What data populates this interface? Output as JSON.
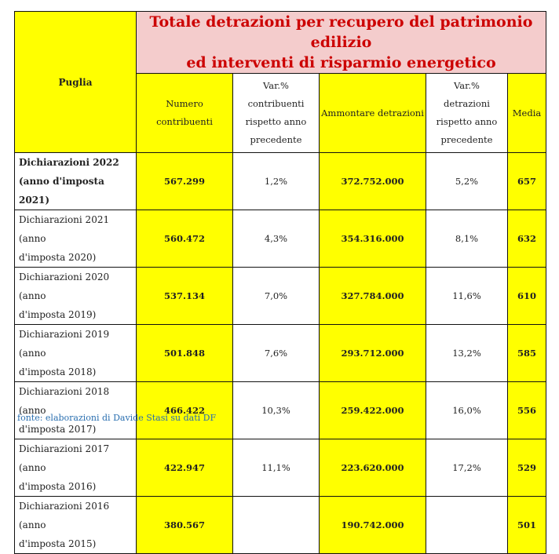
{
  "title_line1": "Totale detrazioni per recupero del patrimonio edilizio",
  "title_line2": "ed interventi di risparmio energetico",
  "region": "Puglia",
  "headers": {
    "contribuenti": [
      "Numero",
      "contribuenti"
    ],
    "var_contribuenti": [
      "Var.%",
      "contribuenti",
      "rispetto anno",
      "precedente"
    ],
    "ammontare": [
      "Ammontare detrazioni"
    ],
    "var_detrazioni": [
      "Var.%",
      "detrazioni",
      "rispetto anno",
      "precedente"
    ],
    "media": [
      "Media"
    ]
  },
  "rows": [
    {
      "label_line1": "Dichiarazioni 2022",
      "label_line2": "(anno d'imposta 2021)",
      "contribuenti": "567.299",
      "var_contribuenti": "1,2%",
      "ammontare": "372.752.000",
      "var_detrazioni": "5,2%",
      "media": "657"
    },
    {
      "label_line1": "Dichiarazioni 2021 (anno",
      "label_line2": "d'imposta 2020)",
      "contribuenti": "560.472",
      "var_contribuenti": "4,3%",
      "ammontare": "354.316.000",
      "var_detrazioni": "8,1%",
      "media": "632"
    },
    {
      "label_line1": "Dichiarazioni 2020 (anno",
      "label_line2": "d'imposta 2019)",
      "contribuenti": "537.134",
      "var_contribuenti": "7,0%",
      "ammontare": "327.784.000",
      "var_detrazioni": "11,6%",
      "media": "610"
    },
    {
      "label_line1": "Dichiarazioni 2019 (anno",
      "label_line2": "d'imposta 2018)",
      "contribuenti": "501.848",
      "var_contribuenti": "7,6%",
      "ammontare": "293.712.000",
      "var_detrazioni": "13,2%",
      "media": "585"
    },
    {
      "label_line1": "Dichiarazioni 2018 (anno",
      "label_line2": "d'imposta 2017)",
      "contribuenti": "466.422",
      "var_contribuenti": "10,3%",
      "ammontare": "259.422.000",
      "var_detrazioni": "16,0%",
      "media": "556"
    },
    {
      "label_line1": "Dichiarazioni 2017 (anno",
      "label_line2": "d'imposta 2016)",
      "contribuenti": "422.947",
      "var_contribuenti": "11,1%",
      "ammontare": "223.620.000",
      "var_detrazioni": "17,2%",
      "media": "529"
    },
    {
      "label_line1": "Dichiarazioni 2016 (anno",
      "label_line2": "d'imposta 2015)",
      "contribuenti": "380.567",
      "var_contribuenti": "",
      "ammontare": "190.742.000",
      "var_detrazioni": "",
      "media": "501"
    }
  ],
  "source": "fonte: elaborazioni di Davide Stasi su dati DF",
  "colors": {
    "highlight": "#ffff00",
    "title_band": "#f4cccc",
    "title_text": "#cc0000",
    "source_text": "#2a6fb0"
  }
}
